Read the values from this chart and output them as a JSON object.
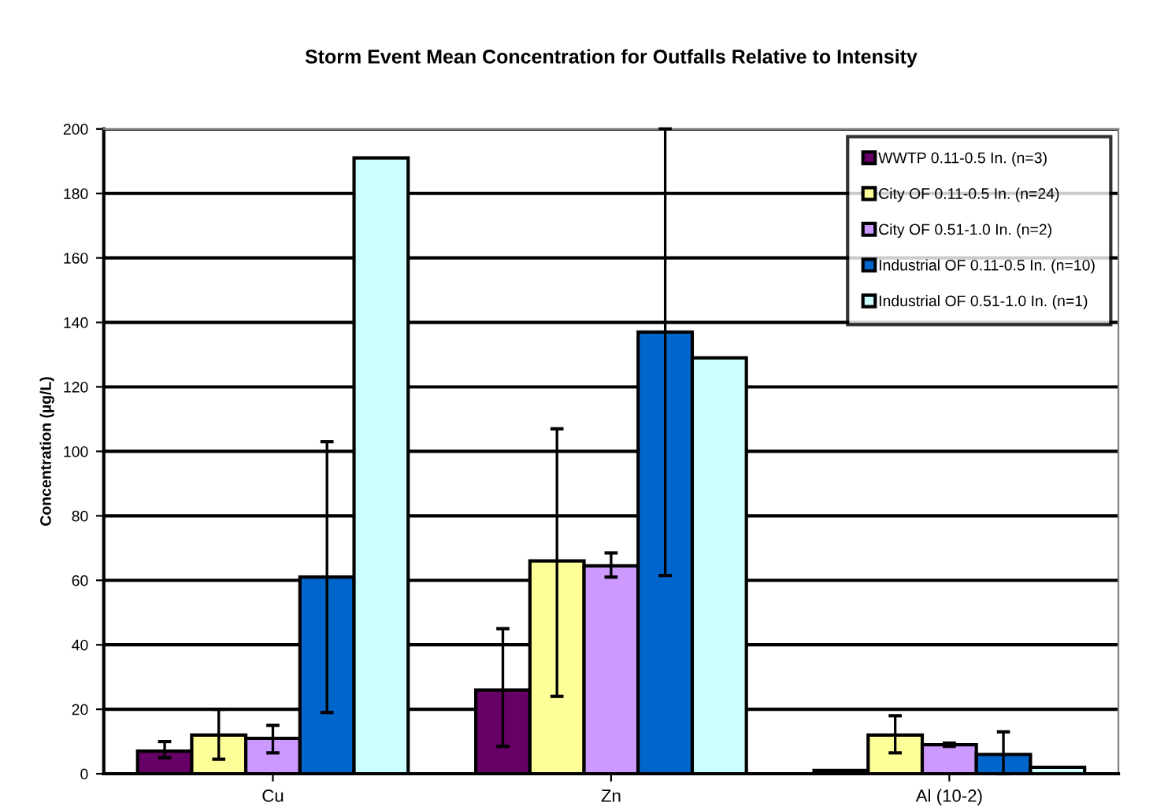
{
  "chart_data": {
    "type": "bar",
    "title": "Storm Event Mean Concentration for Outfalls Relative to Intensity",
    "ylabel": "Concentration (µg/L)",
    "categories": [
      "Cu",
      "Zn",
      "Al (10-2)"
    ],
    "ylim": [
      0,
      200
    ],
    "yticks": [
      0,
      20,
      40,
      60,
      80,
      100,
      120,
      140,
      160,
      180,
      200
    ],
    "grid": "y",
    "legend": "top right",
    "series": [
      {
        "name": "WWTP 0.11-0.5 In. (n=3)",
        "color": "#660066",
        "values": [
          7,
          26,
          1
        ],
        "errors": [
          [
            5,
            10
          ],
          [
            8.5,
            45
          ],
          null
        ]
      },
      {
        "name": "City OF 0.11-0.5 In. (n=24)",
        "color": "#ffff99",
        "values": [
          12,
          66,
          12
        ],
        "errors": [
          [
            4.5,
            20
          ],
          [
            24,
            107
          ],
          [
            6.5,
            18
          ]
        ]
      },
      {
        "name": "City OF 0.51-1.0 In. (n=2)",
        "color": "#cc99ff",
        "values": [
          11,
          64.5,
          9
        ],
        "errors": [
          [
            6.5,
            15
          ],
          [
            61,
            68.5
          ],
          [
            8.5,
            9.5
          ]
        ]
      },
      {
        "name": "Industrial OF 0.11-0.5 In. (n=10)",
        "color": "#0066cc",
        "values": [
          61,
          137,
          6
        ],
        "errors": [
          [
            19,
            103
          ],
          [
            61.5,
            200
          ],
          [
            0,
            13
          ]
        ]
      },
      {
        "name": "Industrial OF 0.51-1.0 In. (n=1)",
        "color": "#ccffff",
        "values": [
          191,
          129,
          2
        ],
        "errors": [
          null,
          null,
          null
        ]
      }
    ]
  }
}
